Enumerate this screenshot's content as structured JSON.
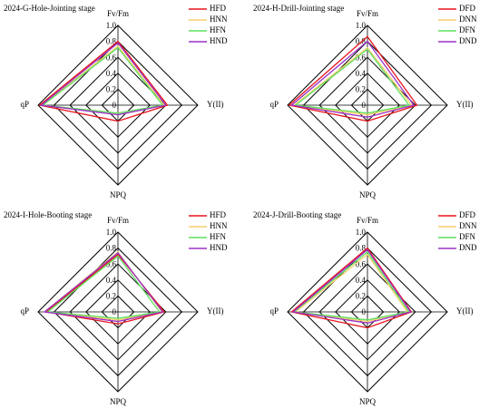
{
  "chart_data": [
    {
      "type": "radar",
      "title": "2024-G-Hole-Jointing stage",
      "categories": [
        "Fv/Fm",
        "Y(II)",
        "NPQ",
        "qP"
      ],
      "rlim": [
        0,
        1
      ],
      "rticks": [
        0,
        0.2,
        0.4,
        0.6,
        0.8,
        {
          "value": 1,
          "label": "1.0"
        }
      ],
      "series": [
        {
          "name": "HFD",
          "color": "#e8141c",
          "values": [
            0.8,
            0.62,
            0.2,
            0.98
          ]
        },
        {
          "name": "HNN",
          "color": "#f5cf6a",
          "values": [
            0.74,
            0.58,
            0.1,
            0.95
          ]
        },
        {
          "name": "HFN",
          "color": "#5fe05f",
          "values": [
            0.72,
            0.56,
            0.1,
            0.94
          ]
        },
        {
          "name": "HND",
          "color": "#9b30c8",
          "values": [
            0.78,
            0.6,
            0.12,
            0.96
          ]
        }
      ]
    },
    {
      "type": "radar",
      "title": "2024-H-Drill-Jointing stage",
      "categories": [
        "Fv/Fm",
        "Y(II)",
        "NPQ",
        "qP"
      ],
      "rlim": [
        0,
        1
      ],
      "rticks": [
        0,
        0.2,
        0.4,
        0.6,
        0.8,
        {
          "value": 1,
          "label": "1.0"
        }
      ],
      "series": [
        {
          "name": "DFD",
          "color": "#e8141c",
          "values": [
            0.86,
            0.62,
            0.2,
            0.98
          ]
        },
        {
          "name": "DNN",
          "color": "#f5cf6a",
          "values": [
            0.72,
            0.55,
            0.12,
            0.92
          ]
        },
        {
          "name": "DFN",
          "color": "#5fe05f",
          "values": [
            0.7,
            0.52,
            0.1,
            0.9
          ]
        },
        {
          "name": "DND",
          "color": "#9b30c8",
          "values": [
            0.8,
            0.58,
            0.15,
            0.95
          ]
        }
      ]
    },
    {
      "type": "radar",
      "title": "2024-I-Hole-Booting stage",
      "categories": [
        "Fv/Fm",
        "Y(II)",
        "NPQ",
        "qP"
      ],
      "rlim": [
        0,
        1
      ],
      "rticks": [
        0,
        0.2,
        0.4,
        0.6,
        0.8,
        {
          "value": 1,
          "label": "1.0"
        }
      ],
      "series": [
        {
          "name": "HFD",
          "color": "#e8141c",
          "values": [
            0.72,
            0.58,
            0.15,
            0.9
          ]
        },
        {
          "name": "HNN",
          "color": "#f5cf6a",
          "values": [
            0.75,
            0.55,
            0.1,
            0.92
          ]
        },
        {
          "name": "HFN",
          "color": "#5fe05f",
          "values": [
            0.7,
            0.52,
            0.08,
            0.88
          ]
        },
        {
          "name": "HND",
          "color": "#9b30c8",
          "values": [
            0.74,
            0.56,
            0.12,
            0.92
          ]
        }
      ]
    },
    {
      "type": "radar",
      "title": "2024-J-Drill-Booting stage",
      "categories": [
        "Fv/Fm",
        "Y(II)",
        "NPQ",
        "qP"
      ],
      "rlim": [
        0,
        1
      ],
      "rticks": [
        0,
        0.2,
        0.4,
        0.6,
        0.8,
        {
          "value": 1,
          "label": "1.0"
        }
      ],
      "series": [
        {
          "name": "DFD",
          "color": "#e8141c",
          "values": [
            0.8,
            0.55,
            0.2,
            0.95
          ]
        },
        {
          "name": "DNN",
          "color": "#f5cf6a",
          "values": [
            0.72,
            0.5,
            0.12,
            0.9
          ]
        },
        {
          "name": "DFN",
          "color": "#5fe05f",
          "values": [
            0.75,
            0.52,
            0.1,
            0.92
          ]
        },
        {
          "name": "DND",
          "color": "#9b30c8",
          "values": [
            0.78,
            0.54,
            0.14,
            0.93
          ]
        }
      ]
    }
  ]
}
